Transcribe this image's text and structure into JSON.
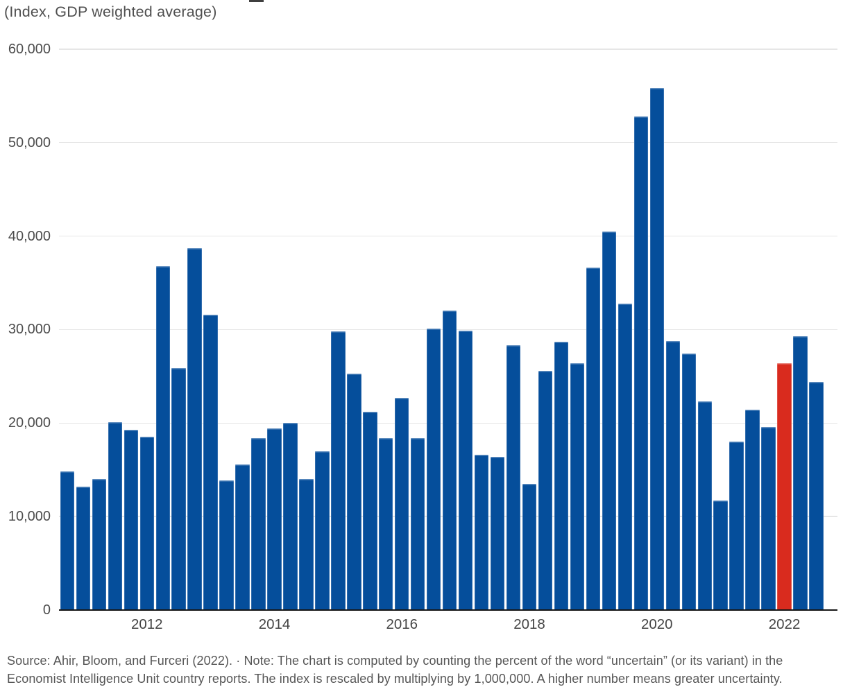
{
  "chart_data": {
    "type": "bar",
    "subtitle": "(Index, GDP weighted average)",
    "x": [
      "2010 Q4",
      "2011 Q1",
      "2011 Q2",
      "2011 Q3",
      "2011 Q4",
      "2012 Q1",
      "2012 Q2",
      "2012 Q3",
      "2012 Q4",
      "2013 Q1",
      "2013 Q2",
      "2013 Q3",
      "2013 Q4",
      "2014 Q1",
      "2014 Q2",
      "2014 Q3",
      "2014 Q4",
      "2015 Q1",
      "2015 Q2",
      "2015 Q3",
      "2015 Q4",
      "2016 Q1",
      "2016 Q2",
      "2016 Q3",
      "2016 Q4",
      "2017 Q1",
      "2017 Q2",
      "2017 Q3",
      "2017 Q4",
      "2018 Q1",
      "2018 Q2",
      "2018 Q3",
      "2018 Q4",
      "2019 Q1",
      "2019 Q2",
      "2019 Q3",
      "2019 Q4",
      "2020 Q1",
      "2020 Q2",
      "2020 Q3",
      "2020 Q4",
      "2021 Q1",
      "2021 Q2",
      "2021 Q3",
      "2021 Q4",
      "2022 Q1",
      "2022 Q2",
      "2022 Q3"
    ],
    "values": [
      14800,
      13200,
      14000,
      20100,
      19300,
      18500,
      36800,
      25900,
      38700,
      31600,
      13900,
      15600,
      18400,
      19400,
      20000,
      14000,
      17000,
      29800,
      25300,
      21200,
      18400,
      22700,
      18400,
      30100,
      32000,
      29900,
      16600,
      16400,
      28300,
      13500,
      25600,
      28700,
      26400,
      36600,
      40500,
      32800,
      52800,
      55800,
      28800,
      27400,
      22300,
      11700,
      18000,
      21400,
      19600,
      26400,
      29300,
      24400
    ],
    "highlight_index": 45,
    "ylim": [
      0,
      60000
    ],
    "grid": true,
    "legend": "none",
    "yticks": {
      "values": [
        0,
        10000,
        20000,
        30000,
        40000,
        50000,
        60000
      ],
      "labels": [
        "0",
        "10,000",
        "20,000",
        "30,000",
        "40,000",
        "50,000",
        "60,000"
      ]
    },
    "xticks": {
      "labels": [
        "2012",
        "2014",
        "2016",
        "2018",
        "2020",
        "2022"
      ],
      "bar_indices": [
        5,
        13,
        21,
        29,
        37,
        45
      ]
    },
    "colors": {
      "bar": "#054E9B",
      "highlight": "#D92B1E",
      "axis_line": "#161616",
      "gridline": "#e6e6e6",
      "tick_label": "#4c4c4c"
    },
    "source_lines": [
      "Source: Ahir, Bloom, and Furceri (2022). · Note: The chart is computed by counting the percent of the word “uncertain” (or its variant) in the",
      "Economist Intelligence Unit country reports. The index is rescaled by multiplying by 1,000,000. A higher number means greater uncertainty."
    ]
  }
}
